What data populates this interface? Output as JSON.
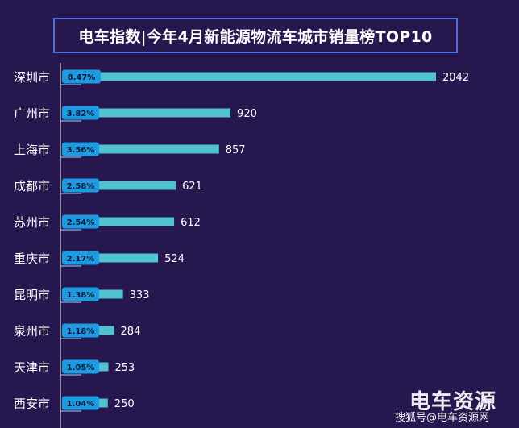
{
  "chart_data": {
    "type": "bar",
    "orientation": "horizontal",
    "title": "电车指数|今年4月新能源物流车城市销量榜TOP10",
    "categories": [
      "深圳市",
      "广州市",
      "上海市",
      "成都市",
      "苏州市",
      "重庆市",
      "昆明市",
      "泉州市",
      "天津市",
      "西安市"
    ],
    "values": [
      2042,
      920,
      857,
      621,
      612,
      524,
      333,
      284,
      253,
      250
    ],
    "share_labels": [
      "8.47%",
      "3.82%",
      "3.56%",
      "2.58%",
      "2.54%",
      "2.17%",
      "1.38%",
      "1.18%",
      "1.05%",
      "1.04%"
    ],
    "shares": [
      8.47,
      3.82,
      3.56,
      2.58,
      2.54,
      2.17,
      1.38,
      1.18,
      1.05,
      1.04
    ],
    "grid": false,
    "colors": {
      "background": "#26174f",
      "bar": "#4fc1d0",
      "share_bar": "#1e9ae0",
      "share_text": "#0a1b3a",
      "label_text": "#ffffff",
      "axis": "#ffffff",
      "title_border": "#4f6ee0"
    }
  },
  "watermark": {
    "logo_text": "电车资源",
    "caption": "搜狐号@电车资源网"
  }
}
